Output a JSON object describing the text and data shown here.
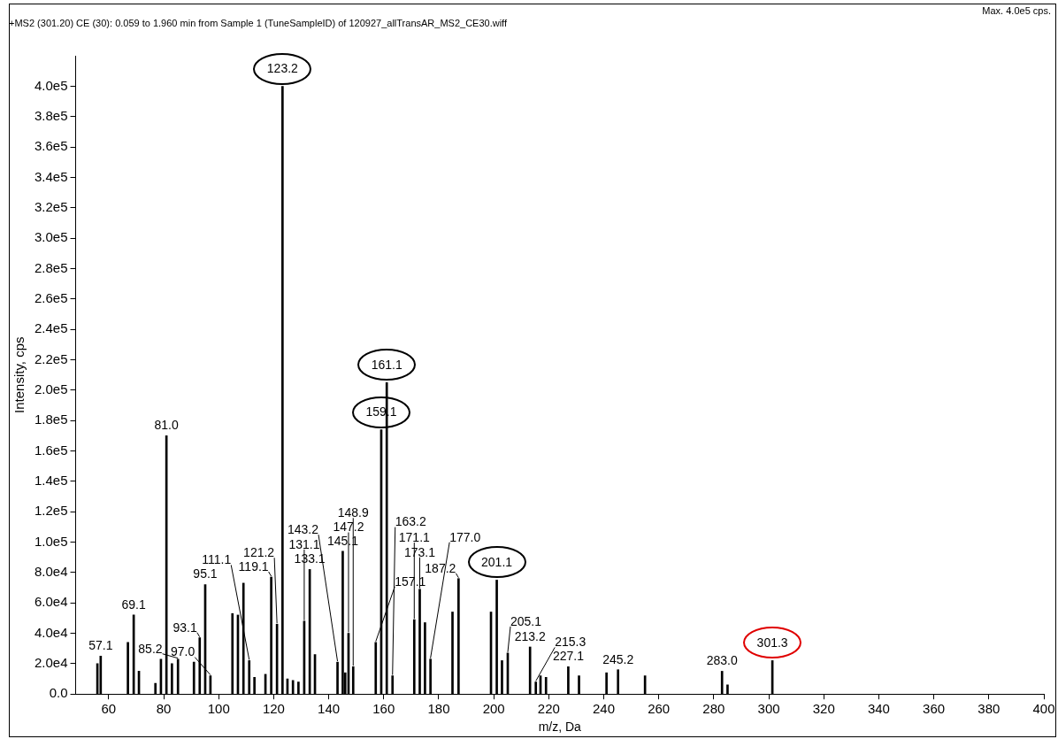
{
  "chart_data": {
    "type": "bar",
    "title": "+MS2 (301.20) CE (30): 0.059 to 1.960 min from Sample 1 (TuneSampleID) of 120927_allTransAR_MS2_CE30.wiff",
    "xlabel": "m/z, Da",
    "ylabel": "Intensity, cps",
    "x": [
      55.9,
      57.1,
      67,
      69.1,
      71,
      77,
      79,
      81.0,
      83,
      85.2,
      91,
      93.1,
      95.1,
      97.0,
      105,
      107,
      109,
      111.1,
      113,
      117,
      119.1,
      121.2,
      123.2,
      125,
      127,
      129,
      131.1,
      133.1,
      135,
      143.2,
      145.1,
      146,
      147.2,
      148.9,
      157.1,
      159.1,
      161.1,
      163.2,
      171.1,
      173.1,
      175,
      177.0,
      185,
      187.2,
      199,
      201.1,
      203,
      205.1,
      213.2,
      215.3,
      217,
      219,
      227.1,
      231,
      241,
      245.2,
      255,
      283.0,
      285,
      301.3
    ],
    "values": [
      20000,
      25000,
      34000,
      52000,
      15000,
      7000,
      23000,
      170000,
      20000,
      23000,
      21000,
      37000,
      72000,
      12000,
      53000,
      52000,
      73000,
      22000,
      11000,
      13000,
      77000,
      46000,
      400000,
      10000,
      9000,
      8000,
      48000,
      82000,
      26000,
      21000,
      94000,
      14000,
      40000,
      18000,
      34000,
      174000,
      205000,
      12000,
      49000,
      69000,
      47000,
      23000,
      54000,
      76000,
      54000,
      75000,
      22000,
      27000,
      31000,
      8000,
      12000,
      11000,
      18000,
      12000,
      14000,
      16000,
      12000,
      15000,
      6000,
      22000
    ],
    "color": "#000000",
    "xlim": [
      48,
      400
    ],
    "xticks": [
      60,
      80,
      100,
      120,
      140,
      160,
      180,
      200,
      220,
      240,
      260,
      280,
      300,
      320,
      340,
      360,
      380,
      400
    ],
    "ylim": [
      0,
      420000
    ],
    "yticks": [
      {
        "value": 0,
        "label": "0.0"
      },
      {
        "value": 20000,
        "label": "2.0e4"
      },
      {
        "value": 40000,
        "label": "4.0e4"
      },
      {
        "value": 60000,
        "label": "6.0e4"
      },
      {
        "value": 80000,
        "label": "8.0e4"
      },
      {
        "value": 100000,
        "label": "1.0e5"
      },
      {
        "value": 120000,
        "label": "1.2e5"
      },
      {
        "value": 140000,
        "label": "1.4e5"
      },
      {
        "value": 160000,
        "label": "1.6e5"
      },
      {
        "value": 180000,
        "label": "1.8e5"
      },
      {
        "value": 200000,
        "label": "2.0e5"
      },
      {
        "value": 220000,
        "label": "2.2e5"
      },
      {
        "value": 240000,
        "label": "2.4e5"
      },
      {
        "value": 260000,
        "label": "2.6e5"
      },
      {
        "value": 280000,
        "label": "2.8e5"
      },
      {
        "value": 300000,
        "label": "3.0e5"
      },
      {
        "value": 320000,
        "label": "3.2e5"
      },
      {
        "value": 340000,
        "label": "3.4e5"
      },
      {
        "value": 360000,
        "label": "3.6e5"
      },
      {
        "value": 380000,
        "label": "3.8e5"
      },
      {
        "value": 400000,
        "label": "4.0e5"
      }
    ],
    "annotations": [
      "Max. 4.0e5 cps.",
      {
        "text": "123.2",
        "x": 123.2,
        "y": 400000
      },
      {
        "text": "161.1",
        "x": 161.1,
        "y": 205000
      },
      {
        "text": "159.1",
        "x": 159.1,
        "y": 174000
      },
      {
        "text": "201.1",
        "x": 201.1,
        "y": 75000
      },
      {
        "text": "301.3",
        "x": 301.3,
        "y": 22000
      },
      {
        "text": "81.0",
        "x": 81.0,
        "y": 170000
      },
      {
        "text": "145.1",
        "x": 145.1,
        "y": 94000
      },
      {
        "text": "133.1",
        "x": 133.1,
        "y": 82000
      },
      {
        "text": "119.1",
        "x": 119.1,
        "y": 77000
      },
      {
        "text": "187.2",
        "x": 187.2,
        "y": 76000
      },
      {
        "text": "95.1",
        "x": 95.1,
        "y": 72000
      },
      {
        "text": "173.1",
        "x": 173.1,
        "y": 69000
      },
      {
        "text": "69.1",
        "x": 69.1,
        "y": 52000
      },
      {
        "text": "171.1",
        "x": 171.1,
        "y": 49000
      },
      {
        "text": "131.1",
        "x": 131.1,
        "y": 48000
      },
      {
        "text": "121.2",
        "x": 121.2,
        "y": 46000
      },
      {
        "text": "147.2",
        "x": 147.2,
        "y": 40000
      },
      {
        "text": "93.1",
        "x": 93.1,
        "y": 37000
      },
      {
        "text": "157.1",
        "x": 157.1,
        "y": 34000
      },
      {
        "text": "213.2",
        "x": 213.2,
        "y": 31000
      },
      {
        "text": "205.1",
        "x": 205.1,
        "y": 27000
      },
      {
        "text": "57.1",
        "x": 57.1,
        "y": 25000
      },
      {
        "text": "85.2",
        "x": 85.2,
        "y": 23000
      },
      {
        "text": "177.0",
        "x": 177.0,
        "y": 23000
      },
      {
        "text": "111.1",
        "x": 111.1,
        "y": 22000
      },
      {
        "text": "143.2",
        "x": 143.2,
        "y": 21000
      },
      {
        "text": "148.9",
        "x": 148.9,
        "y": 18000
      },
      {
        "text": "227.1",
        "x": 227.1,
        "y": 18000
      },
      {
        "text": "245.2",
        "x": 245.2,
        "y": 16000
      },
      {
        "text": "283.0",
        "x": 283.0,
        "y": 15000
      },
      {
        "text": "97.0",
        "x": 97.0,
        "y": 12000
      },
      {
        "text": "163.2",
        "x": 163.2,
        "y": 12000
      },
      {
        "text": "215.3",
        "x": 215.3,
        "y": 8000
      }
    ],
    "grid": false,
    "legend": false
  }
}
